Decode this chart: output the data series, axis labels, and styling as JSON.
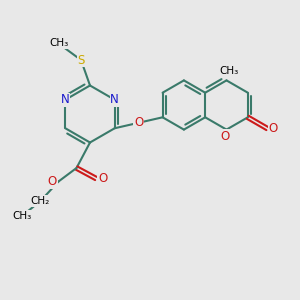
{
  "bg_color": "#e8e8e8",
  "bond_color": "#3a7a6a",
  "bond_width": 1.5,
  "dbo": 0.06,
  "N_color": "#1a1acc",
  "S_color": "#ccaa00",
  "O_color": "#cc1a1a",
  "font_size": 8.5,
  "fig_size": [
    3.0,
    3.0
  ],
  "dpi": 100,
  "xlim": [
    0,
    10
  ],
  "ylim": [
    0,
    10
  ]
}
